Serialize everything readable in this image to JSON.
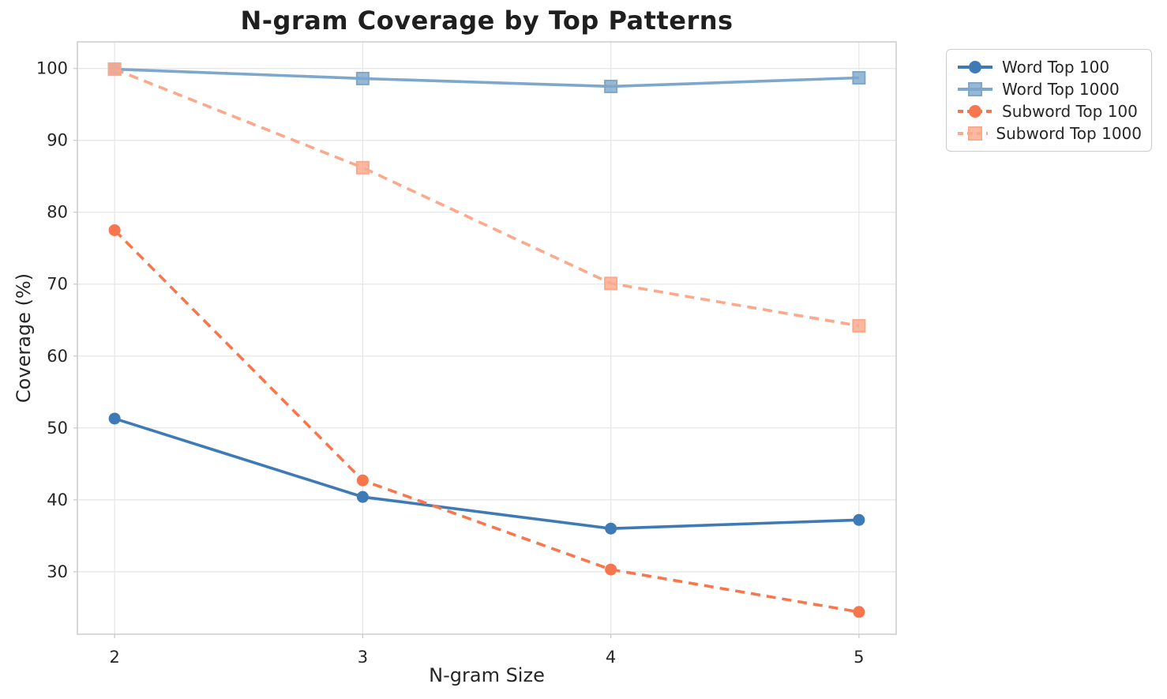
{
  "chart_data": {
    "type": "line",
    "title": "N-gram Coverage by Top Patterns",
    "xlabel": "N-gram Size",
    "ylabel": "Coverage (%)",
    "x": [
      2,
      3,
      4,
      5
    ],
    "series": [
      {
        "name": "Word Top 100",
        "values": [
          51.3,
          40.4,
          36.0,
          37.2
        ],
        "color": "#3e7bb6",
        "line_style": "solid",
        "marker": "circle"
      },
      {
        "name": "Word Top 1000",
        "values": [
          99.9,
          98.6,
          97.5,
          98.7
        ],
        "color": "#7da7cb",
        "line_style": "solid",
        "marker": "square"
      },
      {
        "name": "Subword Top 100",
        "values": [
          77.5,
          42.7,
          30.3,
          24.4
        ],
        "color": "#f8764d",
        "line_style": "dashed",
        "marker": "circle"
      },
      {
        "name": "Subword Top 1000",
        "values": [
          99.9,
          86.2,
          70.1,
          64.2
        ],
        "color": "#fba88b",
        "line_style": "dashed",
        "marker": "square"
      }
    ],
    "x_ticks": [
      2,
      3,
      4,
      5
    ],
    "y_ticks": [
      30,
      40,
      50,
      60,
      70,
      80,
      90,
      100
    ],
    "xlim": [
      1.85,
      5.15
    ],
    "ylim": [
      21.3,
      103.7
    ],
    "grid": true,
    "legend_position": "outside upper right",
    "grid_color": "#e7e7e7",
    "spine_color": "#cccccc"
  }
}
